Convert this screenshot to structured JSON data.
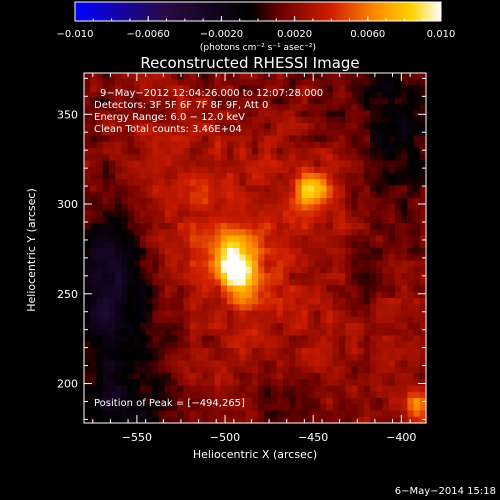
{
  "chart_data": {
    "type": "heatmap",
    "title": "Reconstructed RHESSI Image",
    "xlabel": "Heliocentric X (arcsec)",
    "ylabel": "Heliocentric Y (arcsec)",
    "xlim": [
      -580,
      -386
    ],
    "ylim": [
      178,
      373
    ],
    "x_ticks": [
      -550,
      -500,
      -450,
      -400
    ],
    "y_ticks": [
      200,
      250,
      300,
      350
    ],
    "x_tick_labels": [
      "−550",
      "−500",
      "−450",
      "−400"
    ],
    "y_tick_labels": [
      "200",
      "250",
      "300",
      "350"
    ],
    "colorbar": {
      "min": -0.01,
      "max": 0.01,
      "ticks": [
        -0.01,
        -0.006,
        -0.002,
        0.002,
        0.006,
        0.01
      ],
      "tick_labels": [
        "−0.010",
        "−0.0060",
        "−0.0020",
        "0.0020",
        "0.0060",
        "0.010"
      ],
      "units": "(photons cm⁻² s⁻¹ asec⁻²)",
      "colors": [
        "#0000ff",
        "#2a0a44",
        "#000000",
        "#6a0000",
        "#d01e00",
        "#ff8a00",
        "#ffd200",
        "#ffffff"
      ]
    },
    "annotations": [
      "9−May−2012 12:04:26.000 to 12:07:28.000",
      "Detectors: 3F 5F 6F 7F 8F 9F, Att 0",
      "Energy Range: 6.0 − 12.0 keV",
      "Clean    Total counts: 3.46E+04"
    ],
    "peak_label": "Position of Peak = [−494,265]",
    "peak": [
      -494,
      265
    ],
    "sources": [
      {
        "x": -494,
        "y": 265,
        "peak": 0.01
      },
      {
        "x": -450,
        "y": 308,
        "peak": 0.0068
      },
      {
        "x": -392,
        "y": 187,
        "peak": 0.0055
      }
    ],
    "footer": "6−May−2014 15:18"
  }
}
